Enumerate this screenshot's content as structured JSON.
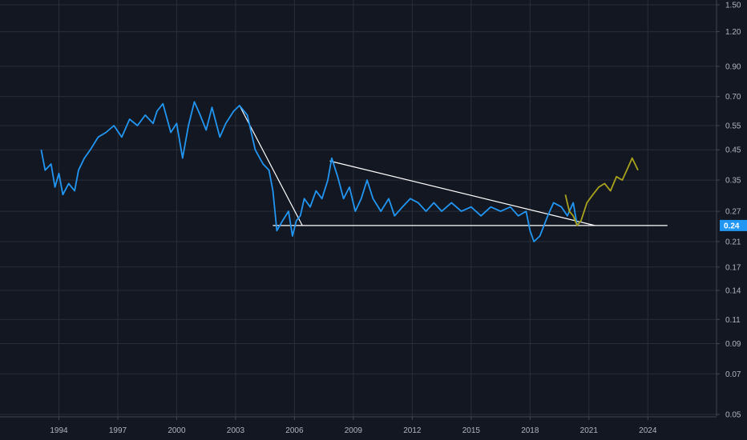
{
  "chart_data": {
    "type": "line",
    "title": "",
    "xlabel": "",
    "ylabel": "",
    "y_scale": "log",
    "ylim": [
      0.05,
      1.5
    ],
    "xlim": [
      1991.0,
      2027.5
    ],
    "grid": true,
    "legend": "none",
    "x_ticks": [
      "1994",
      "1997",
      "2000",
      "2003",
      "2006",
      "2009",
      "2012",
      "2015",
      "2018",
      "2021",
      "2024"
    ],
    "y_ticks": [
      "1.50",
      "1.20",
      "0.90",
      "0.70",
      "0.55",
      "0.45",
      "0.35",
      "0.27",
      "0.21",
      "0.17",
      "0.14",
      "0.11",
      "0.09",
      "0.07",
      "0.05"
    ],
    "current_price_label": "0.24",
    "colors": {
      "background": "#131722",
      "grid": "#2a2e39",
      "price_series": "#2196f3",
      "projection_series": "#a8a21c",
      "trendlines": "#ffffff",
      "axis_text": "#b2b5be",
      "price_label_bg": "#2196f3"
    },
    "series": [
      {
        "values_x": [
          1993.1,
          1993.3,
          1993.6,
          1993.8,
          1994.0,
          1994.2,
          1994.5,
          1994.8,
          1995.0,
          1995.3,
          1995.6,
          1996.0,
          1996.4,
          1996.8,
          1997.2,
          1997.6,
          1998.0,
          1998.4,
          1998.8,
          1999.0,
          1999.3,
          1999.7,
          2000.0,
          2000.3,
          2000.6,
          2000.9,
          2001.2,
          2001.5,
          2001.8,
          2002.2,
          2002.5,
          2002.9,
          2003.2,
          2003.6,
          2004.0,
          2004.4,
          2004.7,
          2004.9,
          2005.1,
          2005.4,
          2005.7,
          2005.9,
          2006.1,
          2006.3,
          2006.5,
          2006.8,
          2007.1,
          2007.4,
          2007.7,
          2007.9,
          2008.2,
          2008.5,
          2008.8,
          2009.1,
          2009.4,
          2009.7,
          2010.0,
          2010.4,
          2010.8,
          2011.1,
          2011.5,
          2011.9,
          2012.3,
          2012.7,
          2013.1,
          2013.5,
          2014.0,
          2014.5,
          2015.0,
          2015.5,
          2016.0,
          2016.5,
          2017.0,
          2017.4,
          2017.8,
          2018.0,
          2018.2,
          2018.5,
          2018.9,
          2019.2,
          2019.6,
          2019.9,
          2020.2,
          2020.4,
          2020.6
        ],
        "values": [
          0.45,
          0.38,
          0.4,
          0.33,
          0.37,
          0.31,
          0.34,
          0.32,
          0.38,
          0.42,
          0.45,
          0.5,
          0.52,
          0.55,
          0.5,
          0.58,
          0.55,
          0.6,
          0.56,
          0.62,
          0.66,
          0.52,
          0.56,
          0.42,
          0.55,
          0.67,
          0.6,
          0.53,
          0.64,
          0.5,
          0.56,
          0.62,
          0.65,
          0.6,
          0.45,
          0.4,
          0.38,
          0.32,
          0.23,
          0.25,
          0.27,
          0.22,
          0.25,
          0.26,
          0.3,
          0.28,
          0.32,
          0.3,
          0.35,
          0.42,
          0.36,
          0.3,
          0.33,
          0.27,
          0.3,
          0.35,
          0.3,
          0.27,
          0.3,
          0.26,
          0.28,
          0.3,
          0.29,
          0.27,
          0.29,
          0.27,
          0.29,
          0.27,
          0.28,
          0.26,
          0.28,
          0.27,
          0.28,
          0.26,
          0.27,
          0.23,
          0.21,
          0.22,
          0.26,
          0.29,
          0.28,
          0.26,
          0.29,
          0.24,
          0.25
        ]
      },
      {
        "values_x": [
          2019.8,
          2020.0,
          2020.2,
          2020.4,
          2020.6,
          2020.9,
          2021.2,
          2021.5,
          2021.8,
          2022.1,
          2022.4,
          2022.7,
          2023.0,
          2023.2,
          2023.5
        ],
        "values": [
          0.31,
          0.27,
          0.26,
          0.24,
          0.25,
          0.29,
          0.31,
          0.33,
          0.34,
          0.32,
          0.36,
          0.35,
          0.39,
          0.42,
          0.38
        ]
      }
    ],
    "trendlines": [
      {
        "x": [
          2003.2,
          2006.4
        ],
        "y": [
          0.65,
          0.24
        ]
      },
      {
        "x": [
          2004.9,
          2025.0
        ],
        "y": [
          0.24,
          0.24
        ]
      },
      {
        "x": [
          2007.8,
          2021.3
        ],
        "y": [
          0.41,
          0.24
        ]
      }
    ]
  }
}
